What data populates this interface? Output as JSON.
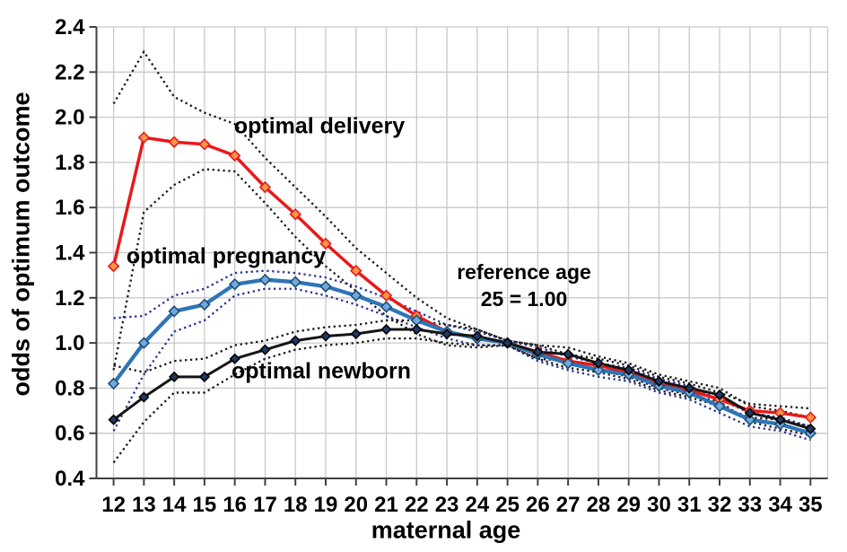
{
  "chart_data": {
    "type": "line",
    "title": "",
    "xlabel": "maternal age",
    "ylabel": "odds of optimum outcome",
    "x": [
      12,
      13,
      14,
      15,
      16,
      17,
      18,
      19,
      20,
      21,
      22,
      23,
      24,
      25,
      26,
      27,
      28,
      29,
      30,
      31,
      32,
      33,
      34,
      35
    ],
    "ylim": [
      0.4,
      2.4
    ],
    "yticks": [
      "2.4",
      "2.2",
      "2.0",
      "1.8",
      "1.6",
      "1.4",
      "1.2",
      "1.0",
      "0.8",
      "0.6",
      "0.4"
    ],
    "grid": true,
    "legend_position": "inline-labels",
    "annotation": {
      "line1": "reference age",
      "line2": "25 = 1.00"
    },
    "series": [
      {
        "key": "optimal-delivery",
        "label": "optimal delivery",
        "color": "#e8191a",
        "marker_fill": "#f79646",
        "marker_stroke": "#e8191a",
        "ci_color": "#1a1a1a",
        "values": [
          1.34,
          1.91,
          1.89,
          1.88,
          1.83,
          1.69,
          1.57,
          1.44,
          1.32,
          1.21,
          1.12,
          1.05,
          1.02,
          1.0,
          0.96,
          0.92,
          0.9,
          0.87,
          0.82,
          0.79,
          0.75,
          0.7,
          0.69,
          0.67
        ],
        "ci_upper": [
          2.06,
          2.29,
          2.09,
          2.02,
          1.97,
          1.82,
          1.69,
          1.56,
          1.42,
          1.31,
          1.2,
          1.11,
          1.06,
          1.01,
          0.99,
          0.95,
          0.93,
          0.9,
          0.85,
          0.82,
          0.78,
          0.73,
          0.72,
          0.71
        ],
        "ci_lower": [
          0.88,
          1.58,
          1.7,
          1.77,
          1.76,
          1.62,
          1.47,
          1.34,
          1.23,
          1.12,
          1.04,
          0.99,
          0.98,
          0.99,
          0.93,
          0.89,
          0.87,
          0.84,
          0.79,
          0.76,
          0.72,
          0.67,
          0.66,
          0.63
        ]
      },
      {
        "key": "optimal-pregnancy",
        "label": "optimal pregnancy",
        "color": "#2e75b6",
        "marker_fill": "#6fa8dc",
        "marker_stroke": "#1f4e79",
        "ci_color": "#2e3192",
        "values": [
          0.82,
          1.0,
          1.14,
          1.17,
          1.26,
          1.28,
          1.27,
          1.25,
          1.21,
          1.16,
          1.1,
          1.05,
          1.02,
          1.0,
          0.95,
          0.91,
          0.88,
          0.86,
          0.81,
          0.78,
          0.72,
          0.66,
          0.64,
          0.6
        ],
        "ci_upper": [
          1.11,
          1.12,
          1.21,
          1.24,
          1.31,
          1.32,
          1.31,
          1.29,
          1.25,
          1.2,
          1.14,
          1.08,
          1.05,
          1.01,
          0.98,
          0.94,
          0.91,
          0.89,
          0.84,
          0.81,
          0.75,
          0.69,
          0.67,
          0.63
        ],
        "ci_lower": [
          0.61,
          0.86,
          1.05,
          1.1,
          1.21,
          1.24,
          1.24,
          1.21,
          1.17,
          1.12,
          1.07,
          1.02,
          0.99,
          0.99,
          0.92,
          0.88,
          0.85,
          0.83,
          0.78,
          0.75,
          0.69,
          0.63,
          0.61,
          0.57
        ]
      },
      {
        "key": "optimal-newborn",
        "label": "optimal newborn",
        "color": "#151515",
        "marker_fill": "#1f3864",
        "marker_stroke": "#000000",
        "ci_color": "#1a1a1a",
        "values": [
          0.66,
          0.76,
          0.85,
          0.85,
          0.93,
          0.97,
          1.01,
          1.03,
          1.04,
          1.06,
          1.06,
          1.04,
          1.03,
          1.0,
          0.96,
          0.95,
          0.91,
          0.88,
          0.83,
          0.8,
          0.77,
          0.69,
          0.66,
          0.62
        ],
        "ci_upper": [
          0.9,
          0.87,
          0.92,
          0.93,
          0.99,
          1.01,
          1.05,
          1.07,
          1.08,
          1.1,
          1.1,
          1.08,
          1.06,
          1.01,
          0.99,
          0.98,
          0.94,
          0.91,
          0.86,
          0.83,
          0.8,
          0.72,
          0.7,
          0.67
        ],
        "ci_lower": [
          0.47,
          0.65,
          0.78,
          0.78,
          0.86,
          0.93,
          0.97,
          0.99,
          1.0,
          1.02,
          1.02,
          1.0,
          0.99,
          0.99,
          0.93,
          0.92,
          0.88,
          0.85,
          0.8,
          0.77,
          0.74,
          0.65,
          0.62,
          0.59
        ]
      }
    ],
    "colors": {
      "grid": "#c9c9c9",
      "axis": "#404040",
      "text": "#000000",
      "background": "#ffffff"
    }
  }
}
